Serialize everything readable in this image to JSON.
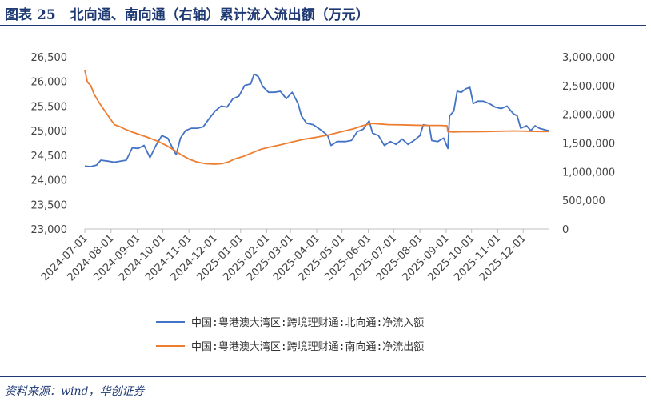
{
  "header": {
    "figure_label": "图表",
    "figure_number": "25",
    "title": "北向通、南向通（右轴）累计流入流出额（万元）"
  },
  "footer": {
    "source": "资料来源：wind，华创证券"
  },
  "colors": {
    "north": "#4472c4",
    "south": "#ed7d31",
    "brand": "#1f3a73"
  },
  "chart_data": {
    "type": "line",
    "title": "北向通、南向通（右轴）累计流入流出额（万元）",
    "xlabel": "",
    "ylabel": "",
    "y_left_lim": [
      23000,
      26500
    ],
    "y_right_lim": [
      0,
      3000000
    ],
    "y_left_ticks": [
      {
        "value": 23000,
        "label": "23,000"
      },
      {
        "value": 23500,
        "label": "23,500"
      },
      {
        "value": 24000,
        "label": "24,000"
      },
      {
        "value": 24500,
        "label": "24,500"
      },
      {
        "value": 25000,
        "label": "25,000"
      },
      {
        "value": 25500,
        "label": "25,500"
      },
      {
        "value": 26000,
        "label": "26,000"
      },
      {
        "value": 26500,
        "label": "26,500"
      }
    ],
    "y_right_ticks": [
      {
        "value": 0,
        "label": "0"
      },
      {
        "value": 500000,
        "label": "500,000"
      },
      {
        "value": 1000000,
        "label": "1,000,000"
      },
      {
        "value": 1500000,
        "label": "1,500,000"
      },
      {
        "value": 2000000,
        "label": "2,000,000"
      },
      {
        "value": 2500000,
        "label": "2,500,000"
      },
      {
        "value": 3000000,
        "label": "3,000,000"
      }
    ],
    "x_range": [
      "2024-07-01",
      "2025-12-31"
    ],
    "x_ticks": [
      "2024-07-01",
      "2024-08-01",
      "2024-09-01",
      "2024-10-01",
      "2024-11-01",
      "2024-12-01",
      "2025-01-01",
      "2025-02-01",
      "2025-03-01",
      "2025-04-01",
      "2025-05-01",
      "2025-06-01",
      "2025-07-01",
      "2025-08-01",
      "2025-09-01",
      "2025-10-01",
      "2025-11-01",
      "2025-12-01"
    ],
    "grid": false,
    "legend_position": "bottom",
    "series": [
      {
        "name": "中国:粤港澳大湾区:跨境理财通:北向通:净流入额",
        "axis": "left",
        "points": [
          [
            "2024-07-01",
            24280
          ],
          [
            "2024-07-08",
            24270
          ],
          [
            "2024-07-15",
            24300
          ],
          [
            "2024-07-20",
            24400
          ],
          [
            "2024-07-28",
            24380
          ],
          [
            "2024-08-05",
            24360
          ],
          [
            "2024-08-12",
            24380
          ],
          [
            "2024-08-19",
            24400
          ],
          [
            "2024-08-26",
            24650
          ],
          [
            "2024-09-02",
            24640
          ],
          [
            "2024-09-09",
            24700
          ],
          [
            "2024-09-16",
            24450
          ],
          [
            "2024-09-23",
            24700
          ],
          [
            "2024-09-30",
            24900
          ],
          [
            "2024-10-07",
            24850
          ],
          [
            "2024-10-14",
            24600
          ],
          [
            "2024-10-17",
            24510
          ],
          [
            "2024-10-22",
            24850
          ],
          [
            "2024-10-28",
            25000
          ],
          [
            "2024-11-04",
            25050
          ],
          [
            "2024-11-11",
            25050
          ],
          [
            "2024-11-18",
            25080
          ],
          [
            "2024-11-25",
            25250
          ],
          [
            "2024-12-02",
            25400
          ],
          [
            "2024-12-09",
            25500
          ],
          [
            "2024-12-16",
            25480
          ],
          [
            "2024-12-23",
            25650
          ],
          [
            "2024-12-30",
            25700
          ],
          [
            "2025-01-06",
            25920
          ],
          [
            "2025-01-13",
            25950
          ],
          [
            "2025-01-17",
            26150
          ],
          [
            "2025-01-22",
            26100
          ],
          [
            "2025-01-27",
            25900
          ],
          [
            "2025-02-03",
            25780
          ],
          [
            "2025-02-10",
            25780
          ],
          [
            "2025-02-17",
            25800
          ],
          [
            "2025-02-24",
            25650
          ],
          [
            "2025-03-03",
            25780
          ],
          [
            "2025-03-10",
            25550
          ],
          [
            "2025-03-14",
            25300
          ],
          [
            "2025-03-20",
            25150
          ],
          [
            "2025-03-28",
            25120
          ],
          [
            "2025-04-07",
            25000
          ],
          [
            "2025-04-14",
            24900
          ],
          [
            "2025-04-18",
            24700
          ],
          [
            "2025-04-25",
            24780
          ],
          [
            "2025-05-05",
            24780
          ],
          [
            "2025-05-12",
            24800
          ],
          [
            "2025-05-19",
            24980
          ],
          [
            "2025-05-26",
            25030
          ],
          [
            "2025-06-02",
            25200
          ],
          [
            "2025-06-06",
            24950
          ],
          [
            "2025-06-13",
            24900
          ],
          [
            "2025-06-20",
            24700
          ],
          [
            "2025-06-27",
            24780
          ],
          [
            "2025-07-04",
            24720
          ],
          [
            "2025-07-11",
            24830
          ],
          [
            "2025-07-18",
            24720
          ],
          [
            "2025-07-25",
            24800
          ],
          [
            "2025-08-01",
            24900
          ],
          [
            "2025-08-05",
            25120
          ],
          [
            "2025-08-12",
            25100
          ],
          [
            "2025-08-15",
            24800
          ],
          [
            "2025-08-22",
            24780
          ],
          [
            "2025-08-29",
            24850
          ],
          [
            "2025-09-03",
            24640
          ],
          [
            "2025-09-05",
            25300
          ],
          [
            "2025-09-10",
            25400
          ],
          [
            "2025-09-14",
            25800
          ],
          [
            "2025-09-19",
            25780
          ],
          [
            "2025-09-24",
            25850
          ],
          [
            "2025-09-29",
            25880
          ],
          [
            "2025-10-03",
            25550
          ],
          [
            "2025-10-08",
            25600
          ],
          [
            "2025-10-15",
            25600
          ],
          [
            "2025-10-22",
            25550
          ],
          [
            "2025-10-29",
            25480
          ],
          [
            "2025-11-05",
            25450
          ],
          [
            "2025-11-12",
            25500
          ],
          [
            "2025-11-19",
            25350
          ],
          [
            "2025-11-24",
            25300
          ],
          [
            "2025-11-28",
            25050
          ],
          [
            "2025-12-05",
            25100
          ],
          [
            "2025-12-10",
            25000
          ],
          [
            "2025-12-15",
            25100
          ],
          [
            "2025-12-20",
            25050
          ],
          [
            "2025-12-26",
            25020
          ],
          [
            "2025-12-31",
            25000
          ]
        ]
      },
      {
        "name": "中国:粤港澳大湾区:跨境理财通:南向通:净流出额",
        "axis": "right",
        "points": [
          [
            "2024-07-01",
            2770000
          ],
          [
            "2024-07-04",
            2560000
          ],
          [
            "2024-07-08",
            2500000
          ],
          [
            "2024-07-12",
            2350000
          ],
          [
            "2024-07-18",
            2200000
          ],
          [
            "2024-07-25",
            2050000
          ],
          [
            "2024-08-01",
            1900000
          ],
          [
            "2024-08-05",
            1820000
          ],
          [
            "2024-08-12",
            1780000
          ],
          [
            "2024-08-19",
            1730000
          ],
          [
            "2024-08-26",
            1690000
          ],
          [
            "2024-09-05",
            1640000
          ],
          [
            "2024-09-15",
            1590000
          ],
          [
            "2024-09-25",
            1530000
          ],
          [
            "2024-10-05",
            1460000
          ],
          [
            "2024-10-15",
            1370000
          ],
          [
            "2024-10-22",
            1300000
          ],
          [
            "2024-11-01",
            1220000
          ],
          [
            "2024-11-10",
            1170000
          ],
          [
            "2024-11-20",
            1140000
          ],
          [
            "2024-12-01",
            1130000
          ],
          [
            "2024-12-10",
            1140000
          ],
          [
            "2024-12-18",
            1170000
          ],
          [
            "2024-12-25",
            1220000
          ],
          [
            "2025-01-05",
            1270000
          ],
          [
            "2025-01-15",
            1330000
          ],
          [
            "2025-01-25",
            1390000
          ],
          [
            "2025-02-05",
            1430000
          ],
          [
            "2025-02-15",
            1460000
          ],
          [
            "2025-03-01",
            1510000
          ],
          [
            "2025-03-15",
            1560000
          ],
          [
            "2025-04-01",
            1600000
          ],
          [
            "2025-04-15",
            1640000
          ],
          [
            "2025-05-01",
            1700000
          ],
          [
            "2025-05-15",
            1750000
          ],
          [
            "2025-05-25",
            1800000
          ],
          [
            "2025-06-05",
            1840000
          ],
          [
            "2025-06-15",
            1830000
          ],
          [
            "2025-06-25",
            1820000
          ],
          [
            "2025-07-10",
            1815000
          ],
          [
            "2025-07-25",
            1810000
          ],
          [
            "2025-08-10",
            1805000
          ],
          [
            "2025-08-25",
            1805000
          ],
          [
            "2025-09-02",
            1800000
          ],
          [
            "2025-09-03",
            1695000
          ],
          [
            "2025-09-10",
            1690000
          ],
          [
            "2025-09-20",
            1695000
          ],
          [
            "2025-10-05",
            1695000
          ],
          [
            "2025-10-20",
            1700000
          ],
          [
            "2025-11-05",
            1705000
          ],
          [
            "2025-11-20",
            1710000
          ],
          [
            "2025-12-05",
            1705000
          ],
          [
            "2025-12-20",
            1700000
          ],
          [
            "2025-12-31",
            1700000
          ]
        ]
      }
    ]
  }
}
